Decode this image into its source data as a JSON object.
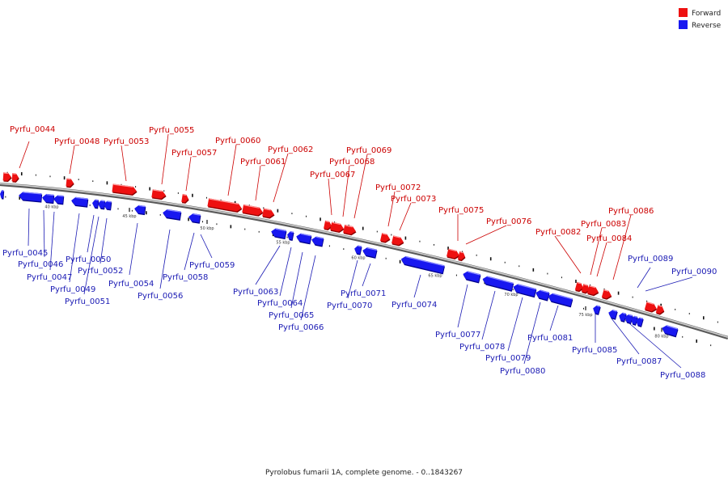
{
  "colors": {
    "forward": "#ee1111",
    "forward_dark": "#8a0000",
    "forward_light": "#ff9a9a",
    "reverse": "#1818f0",
    "reverse_dark": "#00008a",
    "reverse_light": "#8a8aff",
    "forward_label": "#cc0000",
    "reverse_label": "#1a1ab4",
    "backbone": "#9a9a9a"
  },
  "legend": {
    "forward": "Forward",
    "reverse": "Reverse"
  },
  "caption": "Pyrolobus fumarii 1A, complete genome. - 0..1843267",
  "scale_labels": [
    "40 kbp",
    "45 kbp",
    "50 kbp",
    "55 kbp",
    "60 kbp",
    "65 kbp",
    "70 kbp",
    "75 kbp",
    "80 kbp"
  ],
  "forward_genes": [
    "Pyrfu_0044",
    "Pyrfu_0048",
    "Pyrfu_0053",
    "Pyrfu_0055",
    "Pyrfu_0057",
    "Pyrfu_0060",
    "Pyrfu_0061",
    "Pyrfu_0062",
    "Pyrfu_0067",
    "Pyrfu_0068",
    "Pyrfu_0069",
    "Pyrfu_0072",
    "Pyrfu_0073",
    "Pyrfu_0075",
    "Pyrfu_0076",
    "Pyrfu_0082",
    "Pyrfu_0083",
    "Pyrfu_0084",
    "Pyrfu_0086"
  ],
  "reverse_genes": [
    "Pyrfu_0045",
    "Pyrfu_0046",
    "Pyrfu_0047",
    "Pyrfu_0049",
    "Pyrfu_0050",
    "Pyrfu_0051",
    "Pyrfu_0052",
    "Pyrfu_0054",
    "Pyrfu_0056",
    "Pyrfu_0058",
    "Pyrfu_0059",
    "Pyrfu_0063",
    "Pyrfu_0064",
    "Pyrfu_0065",
    "Pyrfu_0066",
    "Pyrfu_0070",
    "Pyrfu_0071",
    "Pyrfu_0074",
    "Pyrfu_0077",
    "Pyrfu_0078",
    "Pyrfu_0079",
    "Pyrfu_0080",
    "Pyrfu_0081",
    "Pyrfu_0085",
    "Pyrfu_0087",
    "Pyrfu_0088",
    "Pyrfu_0089",
    "Pyrfu_0090"
  ]
}
